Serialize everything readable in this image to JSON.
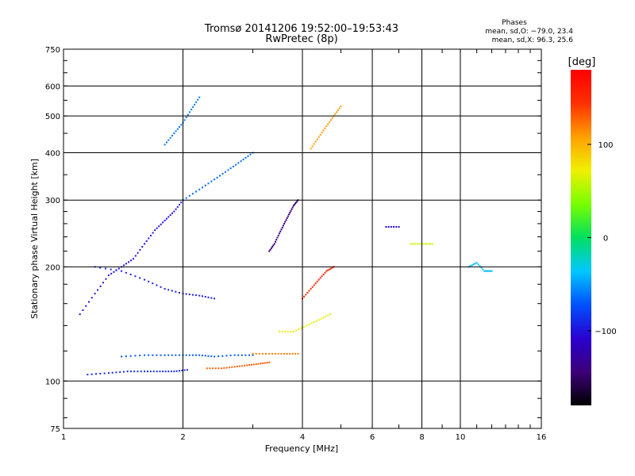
{
  "chart_data": {
    "type": "scatter",
    "title": "Tromsø 20141206 19:52:00–19:53:43",
    "subtitle": "RwPretec (8p)",
    "xlabel": "Frequency [MHz]",
    "ylabel": "Stationary phase Virtual Height [km]",
    "x_scale": "log",
    "y_scale": "log",
    "xlim": [
      1,
      16
    ],
    "ylim": [
      75,
      750
    ],
    "x_ticks": [
      1,
      2,
      4,
      6,
      8,
      10,
      16
    ],
    "x_tick_labels": [
      "1",
      "2",
      "4",
      "6",
      "8",
      "10",
      "16"
    ],
    "y_ticks": [
      75,
      100,
      200,
      300,
      400,
      500,
      600,
      750
    ],
    "y_tick_labels": [
      "75",
      "100",
      "200",
      "300",
      "400",
      "500",
      "600",
      "750"
    ],
    "grid": true,
    "stats": {
      "heading": "Phases",
      "line_o": "mean, sd,O: −79.0, 23.4",
      "line_x": "mean, sd,X:  96.3, 25.6"
    },
    "colorbar": {
      "label": "[deg]",
      "range": [
        -180,
        180
      ],
      "ticks": [
        100,
        0,
        -100
      ],
      "tick_labels": [
        "100",
        "0",
        "−100"
      ],
      "colormap": [
        "#000000",
        "#3c0078",
        "#2a00d0",
        "#0050ff",
        "#00c8ff",
        "#00e060",
        "#78ff00",
        "#f0f000",
        "#ffa000",
        "#ff3000",
        "#ff0000"
      ]
    },
    "traces": [
      {
        "name": "",
        "phase": -90,
        "points": [
          [
            1.15,
            104
          ],
          [
            1.3,
            105
          ],
          [
            1.45,
            106
          ],
          [
            1.6,
            106
          ],
          [
            1.75,
            106
          ],
          [
            1.9,
            106
          ],
          [
            2.05,
            107
          ]
        ]
      },
      {
        "name": "",
        "phase": -70,
        "points": [
          [
            1.4,
            116
          ],
          [
            1.6,
            117
          ],
          [
            1.8,
            117
          ],
          [
            2.0,
            117
          ],
          [
            2.2,
            117
          ],
          [
            2.4,
            116
          ],
          [
            2.7,
            117
          ],
          [
            3.0,
            117
          ]
        ]
      },
      {
        "name": "",
        "phase": 130,
        "points": [
          [
            2.3,
            108
          ],
          [
            2.5,
            108
          ],
          [
            2.7,
            109
          ],
          [
            2.9,
            110
          ],
          [
            3.1,
            111
          ],
          [
            3.3,
            112
          ]
        ]
      },
      {
        "name": "",
        "phase": 120,
        "points": [
          [
            3.0,
            118
          ],
          [
            3.3,
            118
          ],
          [
            3.6,
            118
          ],
          [
            3.9,
            118
          ]
        ]
      },
      {
        "name": "",
        "phase": -100,
        "points": [
          [
            1.1,
            150
          ],
          [
            1.2,
            170
          ],
          [
            1.3,
            190
          ],
          [
            1.4,
            200
          ],
          [
            1.5,
            210
          ],
          [
            1.6,
            230
          ],
          [
            1.7,
            250
          ],
          [
            1.8,
            265
          ],
          [
            1.9,
            280
          ],
          [
            2.0,
            300
          ]
        ]
      },
      {
        "name": "",
        "phase": -95,
        "points": [
          [
            1.2,
            200
          ],
          [
            1.4,
            195
          ],
          [
            1.6,
            185
          ],
          [
            1.8,
            175
          ],
          [
            2.0,
            170
          ],
          [
            2.2,
            168
          ],
          [
            2.4,
            165
          ]
        ]
      },
      {
        "name": "",
        "phase": -60,
        "points": [
          [
            1.8,
            420
          ],
          [
            1.9,
            450
          ],
          [
            2.0,
            480
          ],
          [
            2.1,
            520
          ],
          [
            2.2,
            560
          ]
        ]
      },
      {
        "name": "",
        "phase": -65,
        "points": [
          [
            2.0,
            300
          ],
          [
            2.2,
            320
          ],
          [
            2.4,
            340
          ],
          [
            2.6,
            360
          ],
          [
            2.8,
            380
          ],
          [
            3.0,
            400
          ]
        ]
      },
      {
        "name": "",
        "phase": -140,
        "points": [
          [
            3.3,
            220
          ],
          [
            3.4,
            230
          ],
          [
            3.5,
            245
          ],
          [
            3.6,
            260
          ],
          [
            3.7,
            275
          ],
          [
            3.8,
            290
          ],
          [
            3.9,
            300
          ]
        ]
      },
      {
        "name": "",
        "phase": 110,
        "points": [
          [
            4.2,
            410
          ],
          [
            4.4,
            440
          ],
          [
            4.6,
            470
          ],
          [
            4.8,
            500
          ],
          [
            5.0,
            530
          ]
        ]
      },
      {
        "name": "",
        "phase": 150,
        "points": [
          [
            4.0,
            165
          ],
          [
            4.2,
            175
          ],
          [
            4.4,
            185
          ],
          [
            4.6,
            195
          ],
          [
            4.8,
            200
          ]
        ]
      },
      {
        "name": "",
        "phase": 70,
        "points": [
          [
            3.5,
            135
          ],
          [
            3.8,
            135
          ],
          [
            4.1,
            140
          ],
          [
            4.4,
            145
          ],
          [
            4.7,
            150
          ]
        ]
      },
      {
        "name": "",
        "phase": -110,
        "points": [
          [
            6.5,
            255
          ],
          [
            7.0,
            255
          ]
        ]
      },
      {
        "name": "",
        "phase": 60,
        "points": [
          [
            7.5,
            230
          ],
          [
            8.0,
            230
          ],
          [
            8.5,
            230
          ]
        ]
      },
      {
        "name": "",
        "phase": -40,
        "points": [
          [
            10.5,
            200
          ],
          [
            11.0,
            205
          ],
          [
            11.5,
            195
          ],
          [
            12.0,
            195
          ]
        ]
      }
    ]
  }
}
